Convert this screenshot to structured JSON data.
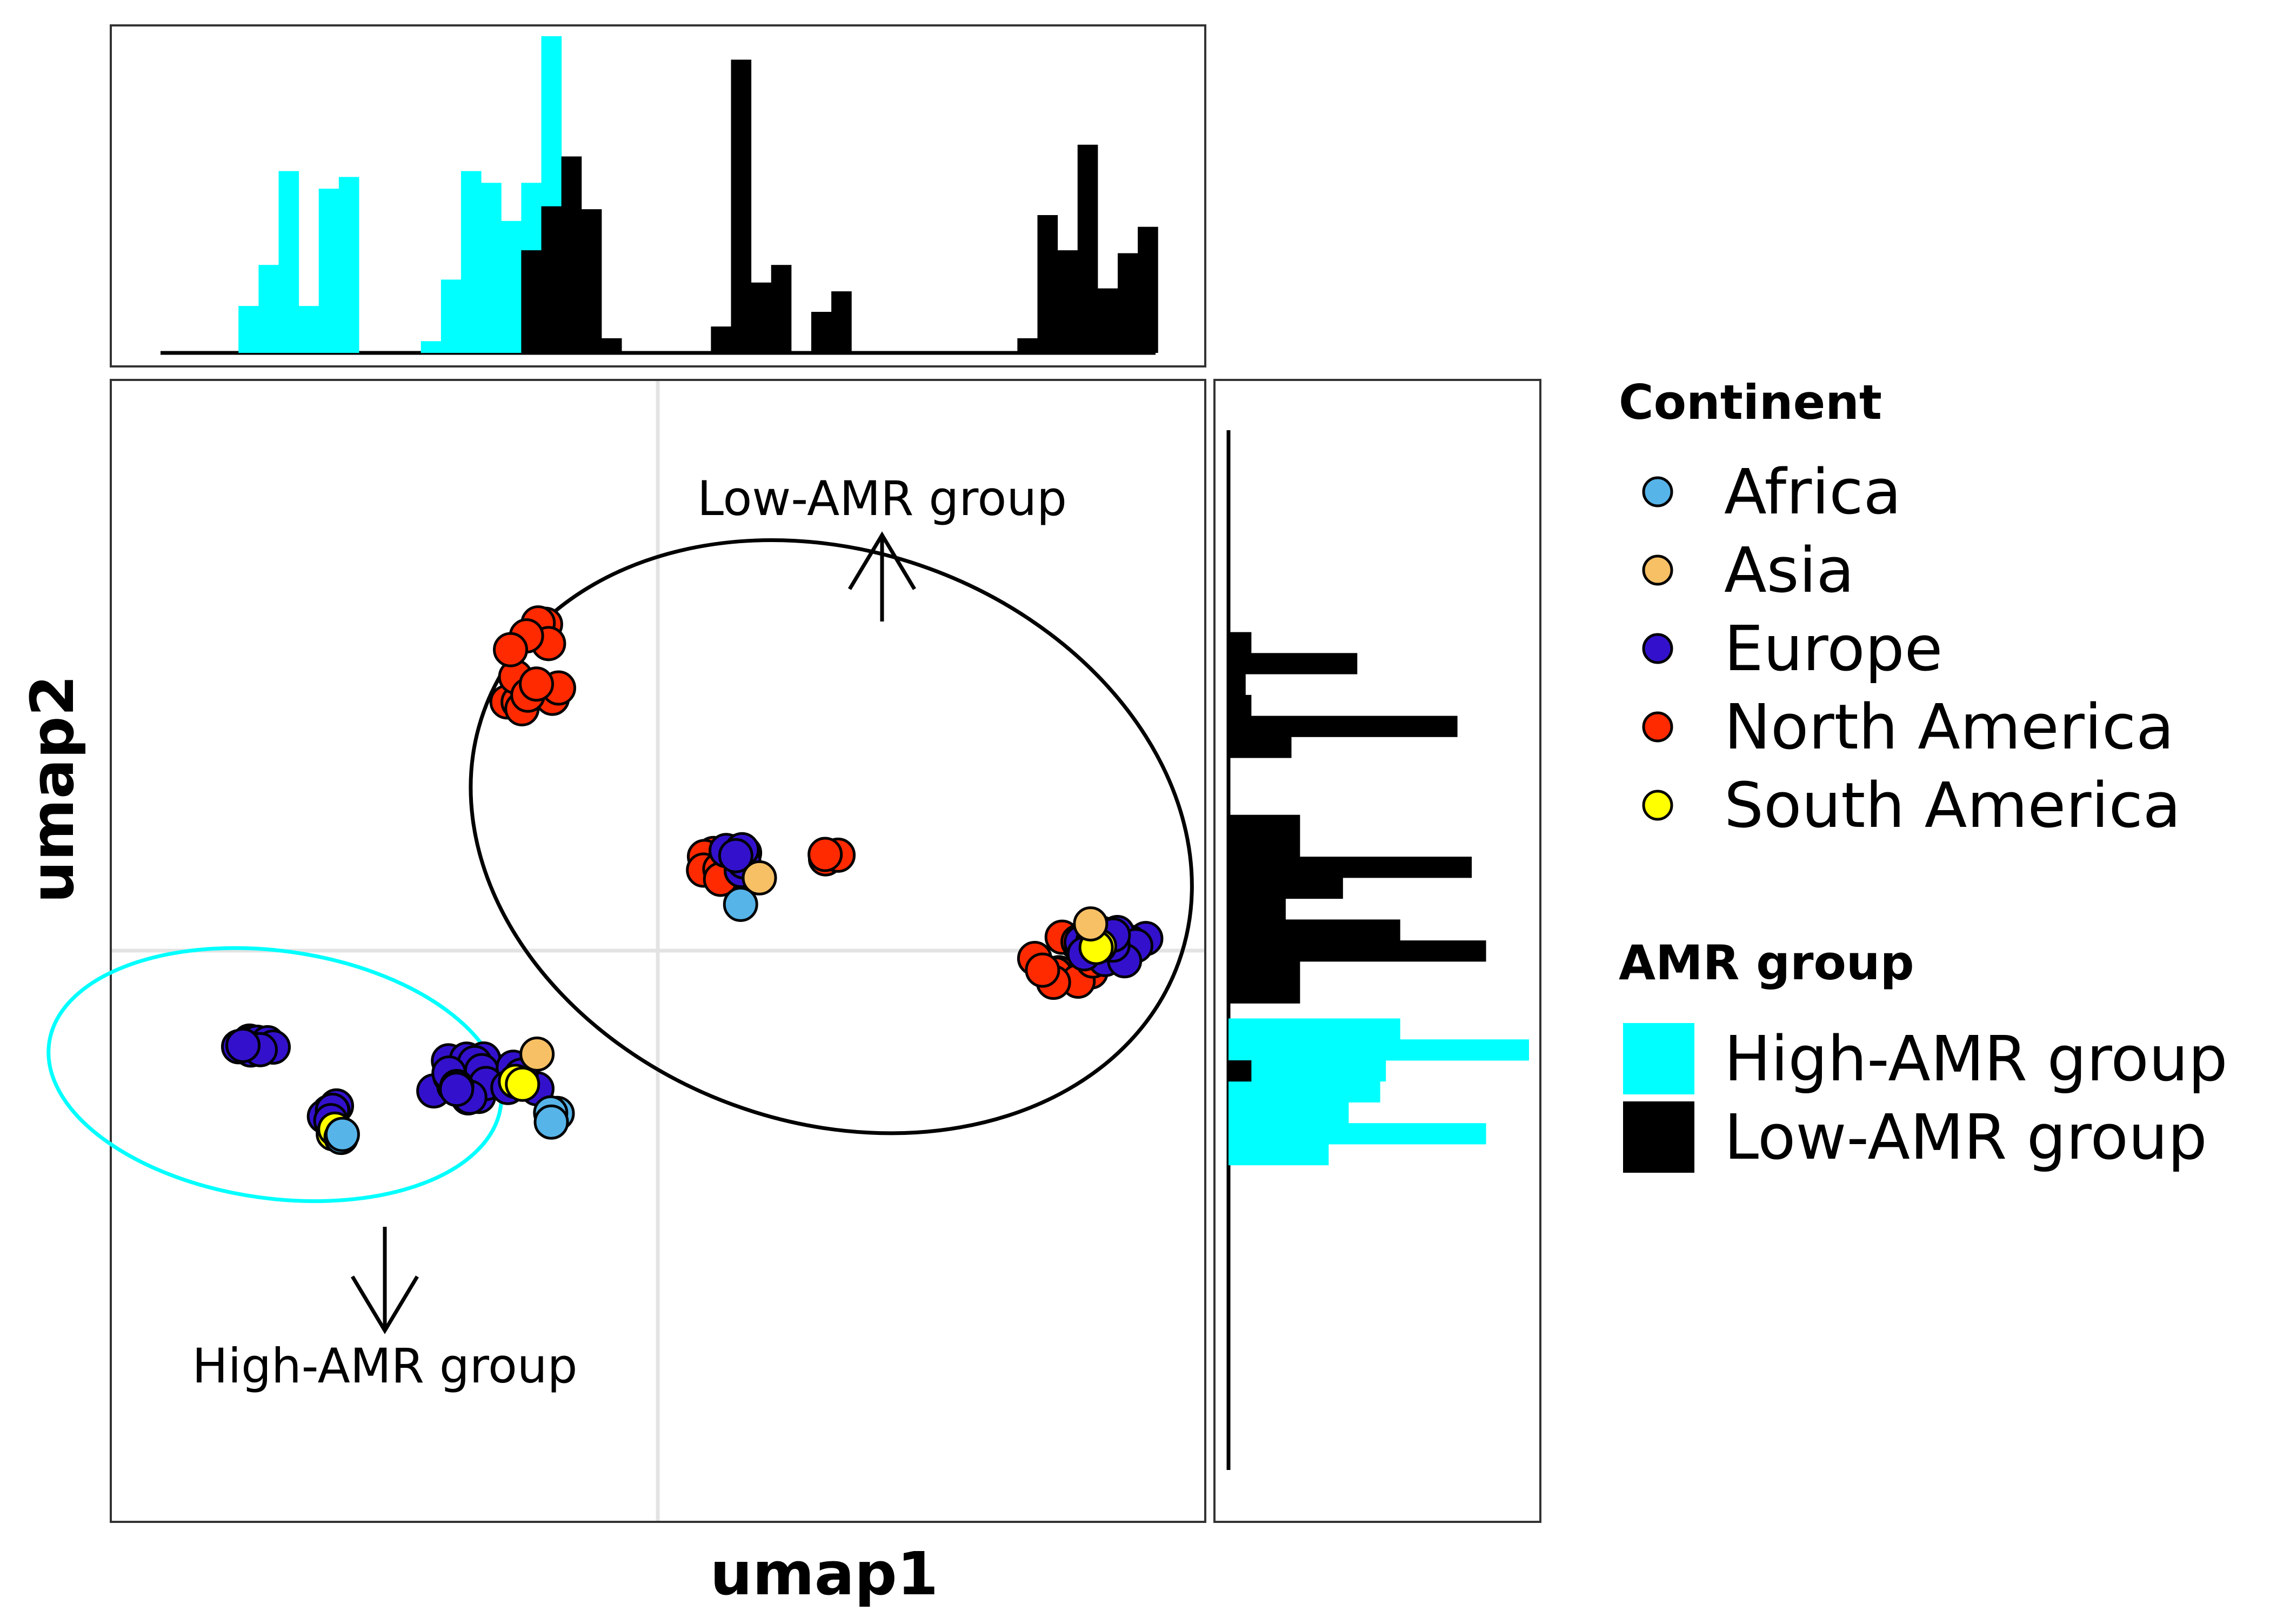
{
  "chart_data": {
    "type": "scatter",
    "title": "",
    "xlabel": "umap1",
    "ylabel": "umap2",
    "xlim": [
      -6,
      6
    ],
    "ylim": [
      -6,
      6
    ],
    "grid": true,
    "legend_position": "right",
    "continent_legend": {
      "title": "Continent",
      "items": [
        {
          "label": "Africa",
          "color": "#56b4e9"
        },
        {
          "label": "Asia",
          "color": "#f7c064"
        },
        {
          "label": "Europe",
          "color": "#3311cc"
        },
        {
          "label": "North America",
          "color": "#ff2a00"
        },
        {
          "label": "South America",
          "color": "#ffff00"
        }
      ]
    },
    "amr_legend": {
      "title": "AMR group",
      "items": [
        {
          "label": "High-AMR group",
          "color": "#00ffff"
        },
        {
          "label": "Low-AMR group",
          "color": "#000000"
        }
      ]
    },
    "annotations": [
      {
        "text": "Low-AMR group",
        "arrow": "up",
        "x": 2.5,
        "y": 4.6
      },
      {
        "text": "High-AMR group",
        "arrow": "down",
        "x": -3.0,
        "y": -4.4
      }
    ],
    "ellipses": [
      {
        "group": "Low-AMR group",
        "cx": 1.9,
        "cy": 1.2,
        "rx": 4.05,
        "ry": 3.0,
        "angle_deg": 20,
        "color": "#000000"
      },
      {
        "group": "High-AMR group",
        "cx": -4.2,
        "cy": -1.3,
        "rx": 2.5,
        "ry": 1.3,
        "angle_deg": 8,
        "color": "#00ffff"
      }
    ],
    "clusters": [
      {
        "continent": "North America",
        "group": "Low-AMR group",
        "cx": -1.4,
        "cy": 3.0,
        "spread": [
          0.38,
          0.52
        ],
        "n": 16
      },
      {
        "continent": "North America",
        "group": "Low-AMR group",
        "cx": 0.75,
        "cy": 0.9,
        "spread": [
          0.28,
          0.25
        ],
        "n": 10
      },
      {
        "continent": "Europe",
        "group": "Low-AMR group",
        "cx": 0.95,
        "cy": 0.95,
        "spread": [
          0.24,
          0.22
        ],
        "n": 8
      },
      {
        "continent": "Asia",
        "group": "Low-AMR group",
        "cx": 1.1,
        "cy": 0.8,
        "spread": [
          0.05,
          0.05
        ],
        "n": 1
      },
      {
        "continent": "Africa",
        "group": "Low-AMR group",
        "cx": 0.95,
        "cy": 0.5,
        "spread": [
          0.05,
          0.05
        ],
        "n": 1
      },
      {
        "continent": "North America",
        "group": "Low-AMR group",
        "cx": 1.9,
        "cy": 1.0,
        "spread": [
          0.1,
          0.06
        ],
        "n": 3
      },
      {
        "continent": "North America",
        "group": "Low-AMR group",
        "cx": 4.5,
        "cy": -0.1,
        "spread": [
          0.38,
          0.28
        ],
        "n": 12
      },
      {
        "continent": "Europe",
        "group": "Low-AMR group",
        "cx": 5.0,
        "cy": 0.05,
        "spread": [
          0.42,
          0.16
        ],
        "n": 12
      },
      {
        "continent": "South America",
        "group": "Low-AMR group",
        "cx": 4.9,
        "cy": 0.1,
        "spread": [
          0.18,
          0.08
        ],
        "n": 3
      },
      {
        "continent": "Asia",
        "group": "Low-AMR group",
        "cx": 4.75,
        "cy": 0.3,
        "spread": [
          0.05,
          0.05
        ],
        "n": 1
      },
      {
        "continent": "Europe",
        "group": "High-AMR group",
        "cx": -4.4,
        "cy": -1.0,
        "spread": [
          0.22,
          0.07
        ],
        "n": 10
      },
      {
        "continent": "Europe",
        "group": "High-AMR group",
        "cx": -3.6,
        "cy": -1.7,
        "spread": [
          0.12,
          0.1
        ],
        "n": 6
      },
      {
        "continent": "South America",
        "group": "High-AMR group",
        "cx": -3.55,
        "cy": -1.9,
        "spread": [
          0.06,
          0.04
        ],
        "n": 2
      },
      {
        "continent": "Africa",
        "group": "High-AMR group",
        "cx": -3.5,
        "cy": -1.95,
        "spread": [
          0.05,
          0.04
        ],
        "n": 2
      },
      {
        "continent": "Europe",
        "group": "High-AMR group",
        "cx": -1.9,
        "cy": -1.35,
        "spread": [
          0.65,
          0.25
        ],
        "n": 20
      },
      {
        "continent": "South America",
        "group": "High-AMR group",
        "cx": -1.5,
        "cy": -1.4,
        "spread": [
          0.08,
          0.05
        ],
        "n": 2
      },
      {
        "continent": "Asia",
        "group": "High-AMR group",
        "cx": -1.3,
        "cy": -1.1,
        "spread": [
          0.05,
          0.05
        ],
        "n": 1
      },
      {
        "continent": "Africa",
        "group": "High-AMR group",
        "cx": -1.15,
        "cy": -1.75,
        "spread": [
          0.1,
          0.05
        ],
        "n": 3
      }
    ],
    "top_histogram": {
      "axis": "umap1",
      "bin_width": 0.22,
      "high": [
        {
          "x0": -4.6,
          "h": 0.16
        },
        {
          "x0": -4.38,
          "h": 0.3
        },
        {
          "x0": -4.16,
          "h": 0.62
        },
        {
          "x0": -3.94,
          "h": 0.16
        },
        {
          "x0": -3.72,
          "h": 0.56
        },
        {
          "x0": -3.5,
          "h": 0.6
        },
        {
          "x0": -2.6,
          "h": 0.04
        },
        {
          "x0": -2.38,
          "h": 0.25
        },
        {
          "x0": -2.16,
          "h": 0.62
        },
        {
          "x0": -1.94,
          "h": 0.58
        },
        {
          "x0": -1.72,
          "h": 0.45
        },
        {
          "x0": -1.5,
          "h": 0.58
        },
        {
          "x0": -1.28,
          "h": 1.08
        }
      ],
      "low": [
        {
          "x0": -1.5,
          "h": 0.35
        },
        {
          "x0": -1.28,
          "h": 0.5
        },
        {
          "x0": -1.06,
          "h": 0.67
        },
        {
          "x0": -0.84,
          "h": 0.49
        },
        {
          "x0": -0.62,
          "h": 0.05
        },
        {
          "x0": 0.58,
          "h": 0.09
        },
        {
          "x0": 0.8,
          "h": 1.0
        },
        {
          "x0": 1.02,
          "h": 0.24
        },
        {
          "x0": 1.24,
          "h": 0.3
        },
        {
          "x0": 1.68,
          "h": 0.14
        },
        {
          "x0": 1.9,
          "h": 0.21
        },
        {
          "x0": 3.94,
          "h": 0.05
        },
        {
          "x0": 4.16,
          "h": 0.47
        },
        {
          "x0": 4.38,
          "h": 0.35
        },
        {
          "x0": 4.6,
          "h": 0.71
        },
        {
          "x0": 4.82,
          "h": 0.22
        },
        {
          "x0": 5.04,
          "h": 0.34
        },
        {
          "x0": 5.26,
          "h": 0.43
        }
      ]
    },
    "right_histogram": {
      "axis": "umap2",
      "bin_width": 0.22,
      "high": [
        {
          "y0": -2.25,
          "w": 0.35
        },
        {
          "y0": -2.03,
          "w": 0.9
        },
        {
          "y0": -1.81,
          "w": 0.42
        },
        {
          "y0": -1.59,
          "w": 0.53
        },
        {
          "y0": -1.37,
          "w": 0.55
        },
        {
          "y0": -1.15,
          "w": 1.05
        },
        {
          "y0": -0.93,
          "w": 0.6
        }
      ],
      "low": [
        {
          "y0": -1.37,
          "w": 0.08
        },
        {
          "y0": -0.55,
          "w": 0.25
        },
        {
          "y0": -0.33,
          "w": 0.25
        },
        {
          "y0": -0.11,
          "w": 0.9
        },
        {
          "y0": 0.11,
          "w": 0.6
        },
        {
          "y0": 0.33,
          "w": 0.2
        },
        {
          "y0": 0.55,
          "w": 0.4
        },
        {
          "y0": 0.77,
          "w": 0.85
        },
        {
          "y0": 0.99,
          "w": 0.25
        },
        {
          "y0": 1.21,
          "w": 0.25
        },
        {
          "y0": 2.03,
          "w": 0.22
        },
        {
          "y0": 2.25,
          "w": 0.8
        },
        {
          "y0": 2.47,
          "w": 0.08
        },
        {
          "y0": 2.69,
          "w": 0.06
        },
        {
          "y0": 2.91,
          "w": 0.45
        },
        {
          "y0": 3.13,
          "w": 0.08
        }
      ]
    }
  }
}
